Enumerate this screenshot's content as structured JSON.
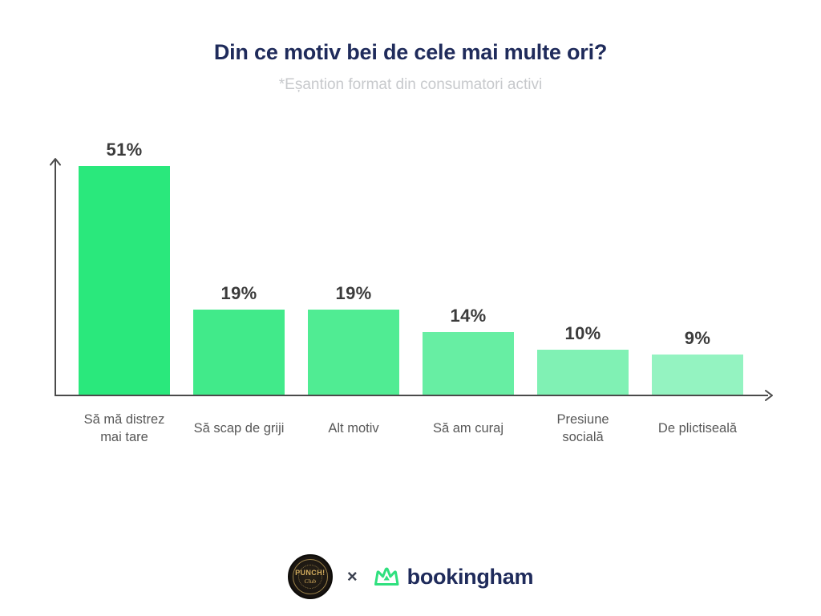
{
  "header": {
    "title": "Din ce motiv bei de cele mai multe ori?",
    "subtitle": "*Eșantion format din consumatori activi"
  },
  "chart_data": {
    "type": "bar",
    "title": "Din ce motiv bei de cele mai multe ori?",
    "subtitle": "*Eșantion format din consumatori activi",
    "categories": [
      "Să mă distrez mai tare",
      "Să scap de griji",
      "Alt motiv",
      "Să am curaj",
      "Presiune socială",
      "De plictiseală"
    ],
    "values": [
      51,
      19,
      19,
      14,
      10,
      9
    ],
    "display_values": [
      "51%",
      "19%",
      "19%",
      "14%",
      "10%",
      "9%"
    ],
    "unit": "%",
    "xlabel": "",
    "ylabel": "",
    "ylim": [
      0,
      55
    ],
    "grid": false,
    "legend": false,
    "axis_style": "arrow-ends, no ticks, no tick labels",
    "bar_colors": [
      "#2ae87c",
      "#41ea8a",
      "#50ec93",
      "#67eea3",
      "#80f1b4",
      "#94f3c1"
    ]
  },
  "footer": {
    "punch_label": "PUNCH!",
    "punch_sub": "Club",
    "separator": "×",
    "brand": "bookingham"
  },
  "colors": {
    "title_navy": "#1f2b5b",
    "subtitle_gray": "#c7c9cc",
    "value_label": "#3b3b3b",
    "category_label": "#585858",
    "axis": "#4a4a4a",
    "brand_green": "#2fe07e"
  }
}
